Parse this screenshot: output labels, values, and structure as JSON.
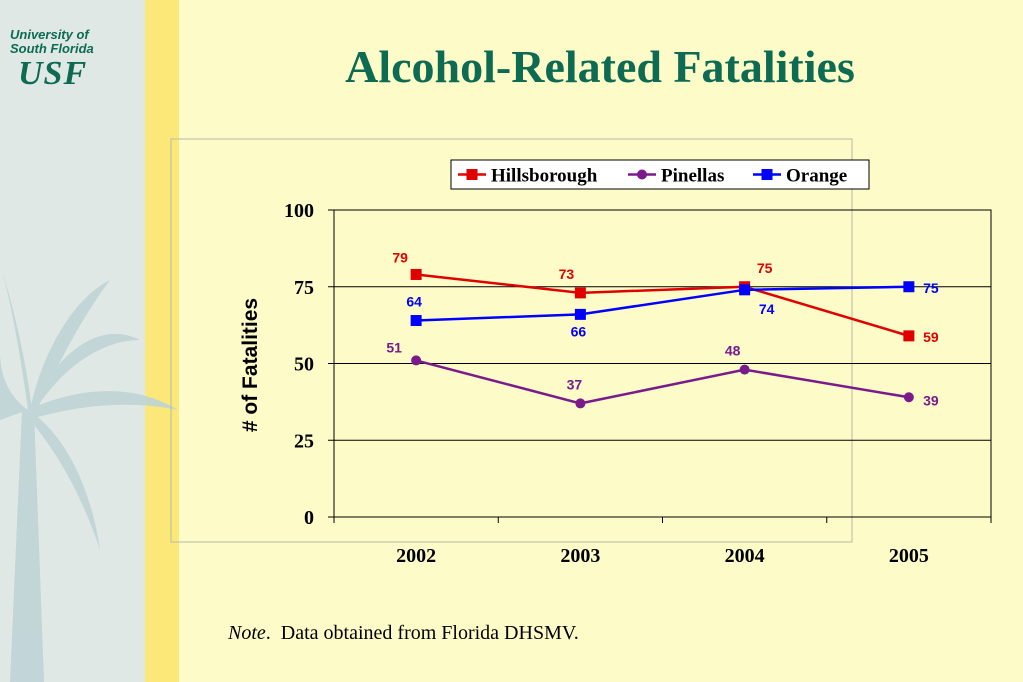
{
  "logo": {
    "line1": "University of",
    "line2": "South Florida",
    "mark": "USF"
  },
  "slide": {
    "title": "Alcohol-Related Fatalities"
  },
  "note": {
    "label": "Note",
    "text": "Data obtained from Florida DHSMV."
  },
  "colors": {
    "title": "#0c6b52",
    "background": "#fdfcc8",
    "hillsborough": "#e00000",
    "pinellas": "#7a1a8c",
    "orange": "#0000ff"
  },
  "chart_data": {
    "type": "line",
    "title": "",
    "xlabel": "",
    "ylabel": "# of Fatalities",
    "categories": [
      "2002",
      "2003",
      "2004",
      "2005"
    ],
    "ylim": [
      0,
      100
    ],
    "yticks": [
      "0",
      "25",
      "50",
      "75",
      "100"
    ],
    "grid": true,
    "legend_position": "top",
    "series": [
      {
        "name": "Hillsborough",
        "values": [
          79,
          73,
          75,
          59
        ],
        "color": "#e00000",
        "marker": "square"
      },
      {
        "name": "Pinellas",
        "values": [
          51,
          37,
          48,
          39
        ],
        "color": "#7a1a8c",
        "marker": "circle"
      },
      {
        "name": "Orange",
        "values": [
          64,
          66,
          74,
          75
        ],
        "color": "#0000ff",
        "marker": "square"
      }
    ]
  }
}
